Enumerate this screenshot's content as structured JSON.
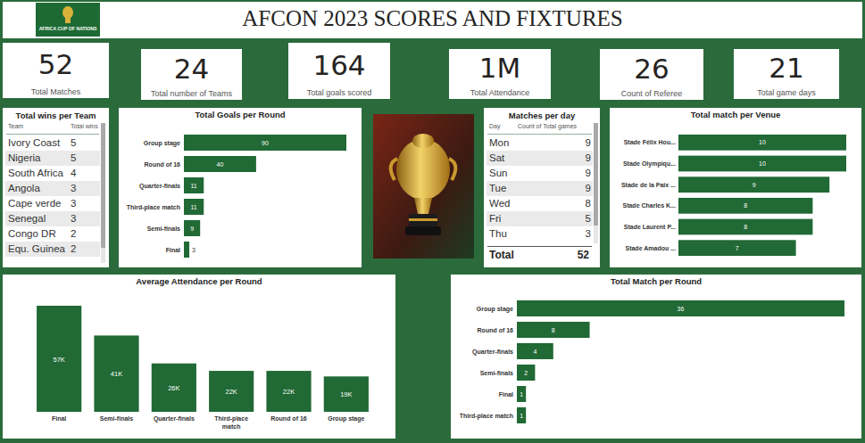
{
  "header": {
    "title": "AFCON 2023 SCORES AND FIXTURES",
    "logo_text": "AFRICA CUP OF NATIONS"
  },
  "kpis": [
    {
      "value": 52,
      "label": "Total Matches"
    },
    {
      "value": 24,
      "label": "Total number of Teams"
    },
    {
      "value": 164,
      "label": "Total goals scored"
    },
    {
      "value": "1M",
      "label": "Total Attendance"
    },
    {
      "value": 26,
      "label": "Count of Referee"
    },
    {
      "value": 21,
      "label": "Total game days"
    }
  ],
  "tables": [
    {
      "title": "Total wins per Team",
      "columns": [
        "Team",
        "Total wins"
      ],
      "rows": [
        [
          "Ivory Coast",
          5
        ],
        [
          "Nigeria",
          5
        ],
        [
          "South Africa",
          4
        ],
        [
          "Angola",
          3
        ],
        [
          "Cape verde",
          3
        ],
        [
          "Senegal",
          3
        ],
        [
          "Congo DR",
          2
        ],
        [
          "Equ. Guinea",
          2
        ]
      ]
    },
    {
      "title": "Matches per day",
      "columns": [
        "Day",
        "Count of Total games"
      ],
      "rows": [
        [
          "Mon",
          9
        ],
        [
          "Sat",
          9
        ],
        [
          "Sun",
          9
        ],
        [
          "Tue",
          9
        ],
        [
          "Wed",
          8
        ],
        [
          "Fri",
          5
        ],
        [
          "Thu",
          3
        ]
      ],
      "total": [
        "Total",
        52
      ]
    }
  ],
  "chart_data": [
    {
      "type": "bar",
      "title": "Total Goals per Round",
      "orientation": "horizontal",
      "categories": [
        "Group stage",
        "Round of 16",
        "Quarter-finals",
        "Third-place match",
        "Semi-finals",
        "Final"
      ],
      "values": [
        90,
        40,
        11,
        11,
        9,
        3
      ],
      "color": "#216935",
      "xlim": [
        0,
        90
      ],
      "data_labels": true,
      "tick_labels": "y"
    },
    {
      "type": "bar",
      "title": "Total match per Venue",
      "orientation": "horizontal",
      "categories": [
        "Stade Félix Hou...",
        "Stade Olympiqu...",
        "Stade de la Paix ...",
        "Stade Charles K...",
        "Stade Laurent P...",
        "Stade Amadou ..."
      ],
      "values": [
        10,
        10,
        9,
        8,
        8,
        7
      ],
      "color": "#216935",
      "xlim": [
        0,
        10
      ],
      "data_labels": true,
      "tick_labels": "y"
    },
    {
      "type": "bar",
      "title": "Average Attendance per Round",
      "categories": [
        "Final",
        "Semi-finals",
        "Quarter-finals",
        "Third-place match",
        "Round of 16",
        "Group stage"
      ],
      "values": [
        57000,
        41000,
        26000,
        22000,
        22000,
        19000
      ],
      "value_labels": [
        "57K",
        "41K",
        "26K",
        "22K",
        "22K",
        "19K"
      ],
      "color": "#216935",
      "ylim": [
        0,
        57000
      ],
      "data_labels": true,
      "tick_labels": "x"
    },
    {
      "type": "bar",
      "title": "Total Match per Round",
      "orientation": "horizontal",
      "categories": [
        "Group stage",
        "Round of 16",
        "Quarter-finals",
        "Semi-finals",
        "Final",
        "Third-place match"
      ],
      "values": [
        36,
        8,
        4,
        2,
        1,
        1
      ],
      "color": "#216935",
      "xlim": [
        0,
        36
      ],
      "data_labels": true,
      "tick_labels": "y"
    }
  ]
}
